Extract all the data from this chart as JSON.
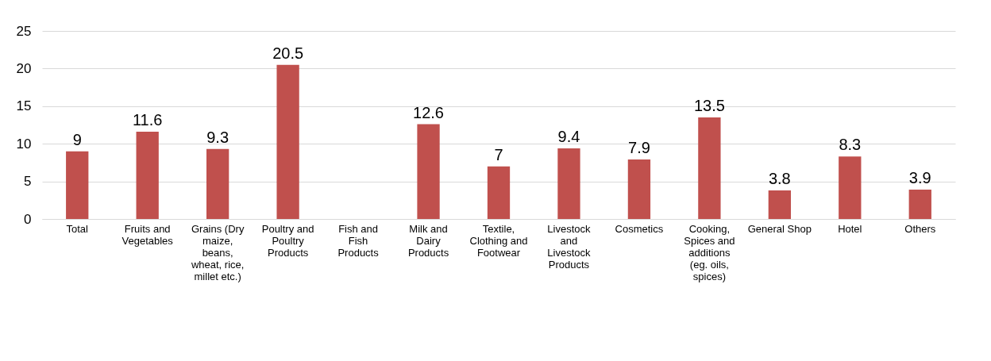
{
  "chart_data": {
    "type": "bar",
    "categories": [
      "Total",
      "Fruits and Vegetables",
      "Grains (Dry maize, beans, wheat, rice, millet etc.)",
      "Poultry and Poultry Products",
      "Fish and Fish Products",
      "Milk and Dairy Products",
      "Textile, Clothing and Footwear",
      "Livestock and Livestock Products",
      "Cosmetics",
      "Cooking, Spices and additions (eg. oils, spices)",
      "General Shop",
      "Hotel",
      "Others"
    ],
    "values": [
      9,
      11.6,
      9.3,
      20.5,
      null,
      12.6,
      7,
      9.4,
      7.9,
      13.5,
      3.8,
      8.3,
      3.9
    ],
    "color": "#c0504d",
    "ylim": [
      0,
      25
    ],
    "yticks": [
      0,
      5,
      10,
      15,
      20,
      25
    ],
    "grid": "y",
    "data_labels": true
  }
}
